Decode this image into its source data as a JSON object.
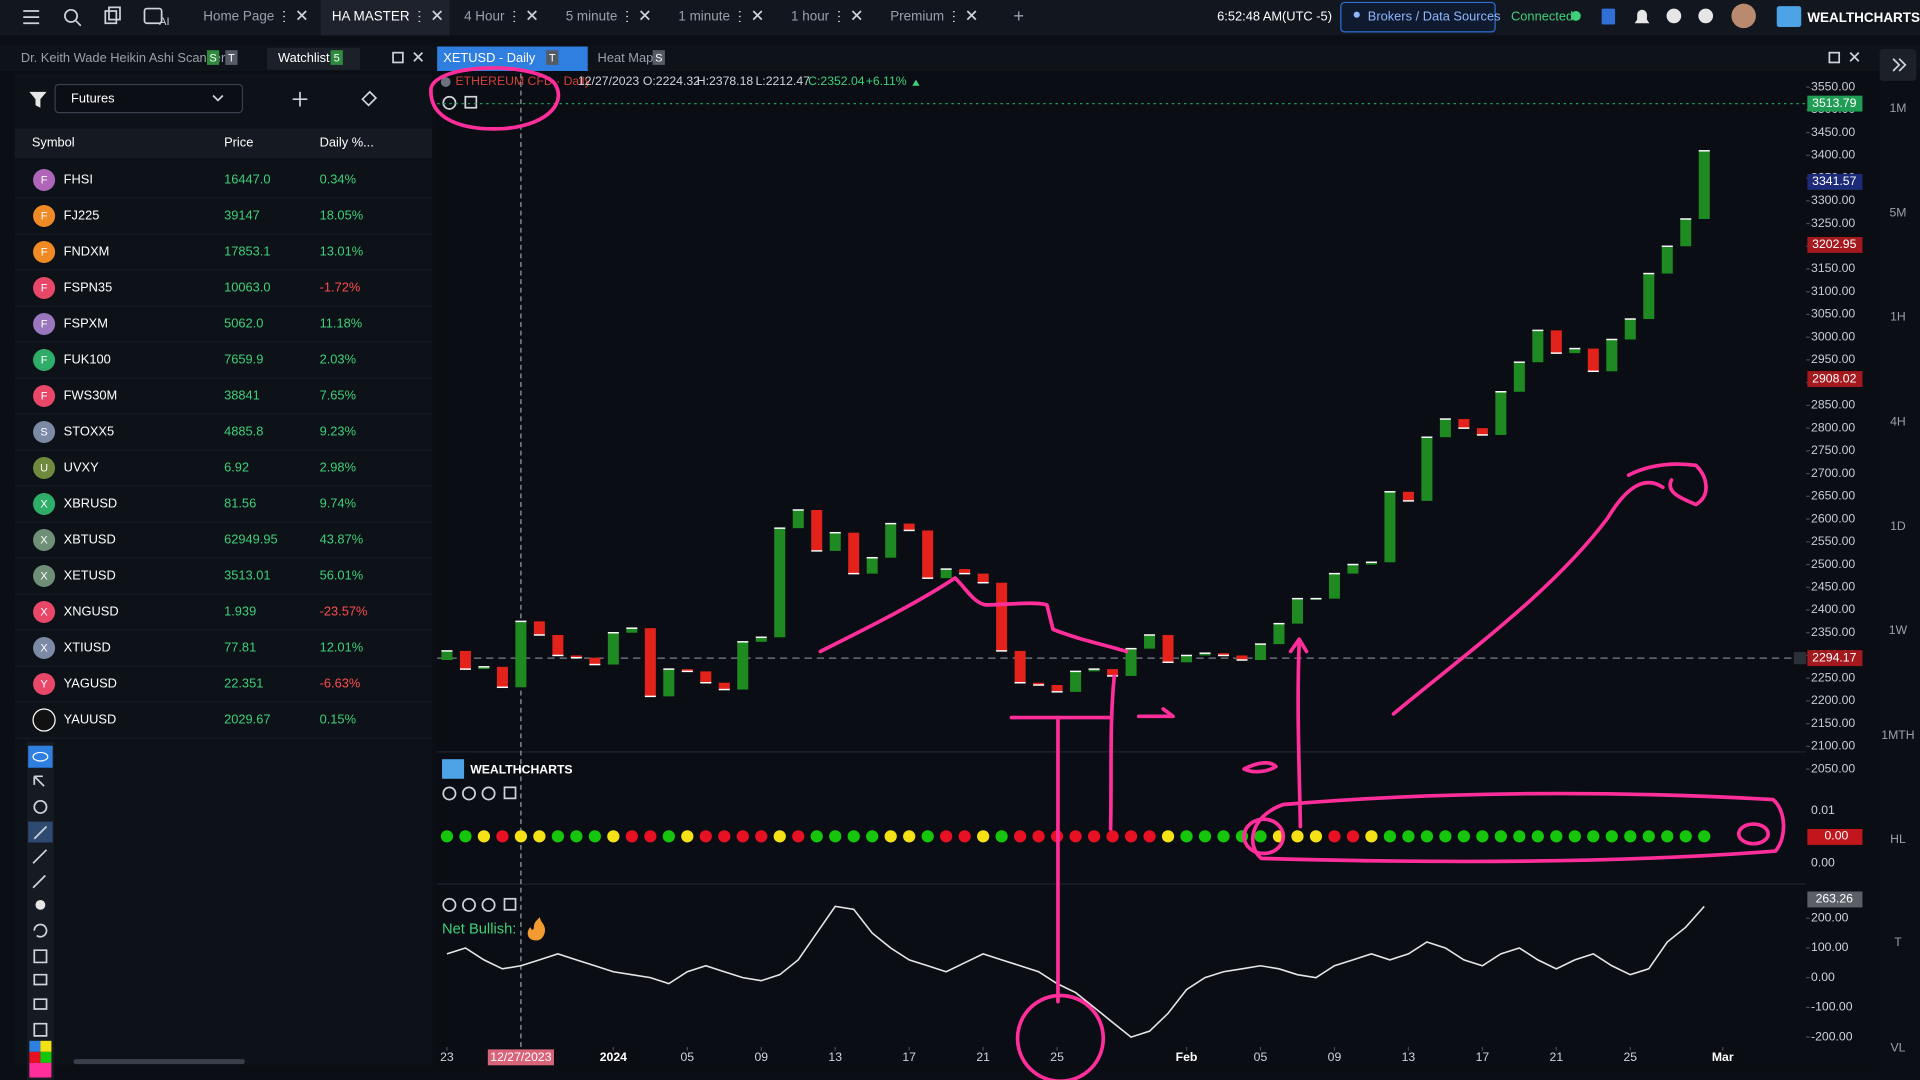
{
  "topbar": {
    "tabs": [
      "Home Page",
      "HA MASTER",
      "4 Hour",
      "5 minute",
      "1 minute",
      "1 hour",
      "Premium"
    ],
    "clock": "6:52:48 AM",
    "timezone": "(UTC -5)",
    "brokers_button": "Brokers / Data Sources",
    "status": "Connected",
    "brand": "WEALTHCHARTS"
  },
  "panels": {
    "scanner_tab": "Dr. Keith Wade Heikin Ashi Scanner",
    "scanner_badges": [
      "S",
      "T"
    ],
    "watchlist_tab": "Watchlist",
    "watchlist_badge": "5",
    "chart_tab": "XETUSD - Daily",
    "chart_badge": "T",
    "heatmap_tab": "Heat Map",
    "heatmap_badge": "S"
  },
  "watchlist": {
    "filter": "Futures",
    "columns": [
      "Symbol",
      "Price",
      "Daily %..."
    ],
    "rows": [
      {
        "icon": "F",
        "color": "#b066b8",
        "symbol": "FHSI",
        "price": "16447.0",
        "change": "0.34%"
      },
      {
        "icon": "F",
        "color": "#f08a24",
        "symbol": "FJ225",
        "price": "39147",
        "change": "18.05%"
      },
      {
        "icon": "F",
        "color": "#f08a24",
        "symbol": "FNDXM",
        "price": "17853.1",
        "change": "13.01%"
      },
      {
        "icon": "F",
        "color": "#e8476a",
        "symbol": "FSPN35",
        "price": "10063.0",
        "change": "-1.72%"
      },
      {
        "icon": "F",
        "color": "#9a78c0",
        "symbol": "FSPXM",
        "price": "5062.0",
        "change": "11.18%"
      },
      {
        "icon": "F",
        "color": "#2fae6a",
        "symbol": "FUK100",
        "price": "7659.9",
        "change": "2.03%"
      },
      {
        "icon": "F",
        "color": "#e8476a",
        "symbol": "FWS30M",
        "price": "38841",
        "change": "7.65%"
      },
      {
        "icon": "S",
        "color": "#7d8aa6",
        "symbol": "STOXX5",
        "price": "4885.8",
        "change": "9.23%"
      },
      {
        "icon": "U",
        "color": "#6f8a3c",
        "symbol": "UVXY",
        "price": "6.92",
        "change": "2.98%"
      },
      {
        "icon": "X",
        "color": "#2fae6a",
        "symbol": "XBRUSD",
        "price": "81.56",
        "change": "9.74%"
      },
      {
        "icon": "X",
        "color": "#6f8f76",
        "symbol": "XBTUSD",
        "price": "62949.95",
        "change": "43.87%"
      },
      {
        "icon": "X",
        "color": "#6f8f76",
        "symbol": "XETUSD",
        "price": "3513.01",
        "change": "56.01%"
      },
      {
        "icon": "X",
        "color": "#e8476a",
        "symbol": "XNGUSD",
        "price": "1.939",
        "change": "-23.57%"
      },
      {
        "icon": "X",
        "color": "#7d8aa6",
        "symbol": "XTIUSD",
        "price": "77.81",
        "change": "12.01%"
      },
      {
        "icon": "Y",
        "color": "#e8476a",
        "symbol": "YAGUSD",
        "price": "22.351",
        "change": "-6.63%"
      },
      {
        "icon": "",
        "color": "#111111",
        "symbol": "YAUUSD",
        "price": "2029.67",
        "change": "0.15%"
      }
    ]
  },
  "chart": {
    "legend": {
      "symbol": "ETHEREUM CFD · Daily",
      "date": "12/27/2023",
      "open": "O:2224.32",
      "high": "H:2378.18",
      "low": "L:2212.47",
      "close": "C:2352.04",
      "change": "+6.11%"
    },
    "crosshair_date": "12/27/2023",
    "dates": [
      "2023-12-23",
      "2023-12-24",
      "2023-12-25",
      "2023-12-26",
      "2023-12-27",
      "2023-12-28",
      "2023-12-29",
      "2023-12-30",
      "2023-12-31",
      "2024-01-01",
      "2024-01-02",
      "2024-01-03",
      "2024-01-04",
      "2024-01-05",
      "2024-01-06",
      "2024-01-07",
      "2024-01-08",
      "2024-01-09",
      "2024-01-10",
      "2024-01-11",
      "2024-01-12",
      "2024-01-13",
      "2024-01-14",
      "2024-01-15",
      "2024-01-16",
      "2024-01-17",
      "2024-01-18",
      "2024-01-19",
      "2024-01-20",
      "2024-01-21",
      "2024-01-22",
      "2024-01-23",
      "2024-01-24",
      "2024-01-25",
      "2024-01-26",
      "2024-01-27",
      "2024-01-28",
      "2024-01-29",
      "2024-01-30",
      "2024-01-31",
      "2024-02-01",
      "2024-02-02",
      "2024-02-03",
      "2024-02-04",
      "2024-02-05",
      "2024-02-06",
      "2024-02-07",
      "2024-02-08",
      "2024-02-09",
      "2024-02-10",
      "2024-02-11",
      "2024-02-12",
      "2024-02-13",
      "2024-02-14",
      "2024-02-15",
      "2024-02-16",
      "2024-02-17",
      "2024-02-18",
      "2024-02-19",
      "2024-02-20",
      "2024-02-21",
      "2024-02-22",
      "2024-02-23",
      "2024-02-24",
      "2024-02-25",
      "2024-02-26",
      "2024-02-27",
      "2024-02-28",
      "2024-02-29"
    ],
    "candles": {
      "up_color": "#1f8a22",
      "down_color": "#e3231b",
      "open": [
        2290,
        2310,
        2270,
        2275,
        2230,
        2375,
        2345,
        2300,
        2295,
        2280,
        2350,
        2360,
        2210,
        2270,
        2265,
        2240,
        2225,
        2330,
        2340,
        2580,
        2620,
        2530,
        2570,
        2480,
        2515,
        2590,
        2575,
        2470,
        2490,
        2480,
        2460,
        2310,
        2240,
        2235,
        2220,
        2265,
        2270,
        2255,
        2315,
        2345,
        2285,
        2300,
        2305,
        2300,
        2290,
        2325,
        2370,
        2425,
        2425,
        2480,
        2500,
        2505,
        2660,
        2640,
        2780,
        2820,
        2800,
        2785,
        2880,
        2945,
        3015,
        2965,
        2975,
        2925,
        2995,
        3040,
        3140,
        3200,
        3260
      ],
      "close": [
        2310,
        2270,
        2275,
        2230,
        2375,
        2345,
        2300,
        2295,
        2280,
        2350,
        2360,
        2210,
        2270,
        2265,
        2240,
        2225,
        2330,
        2340,
        2580,
        2620,
        2530,
        2570,
        2480,
        2515,
        2590,
        2575,
        2470,
        2490,
        2480,
        2460,
        2310,
        2240,
        2235,
        2220,
        2265,
        2270,
        2255,
        2315,
        2345,
        2285,
        2300,
        2305,
        2300,
        2290,
        2325,
        2370,
        2425,
        2425,
        2480,
        2500,
        2505,
        2660,
        2640,
        2780,
        2820,
        2800,
        2785,
        2880,
        2945,
        3015,
        2965,
        2975,
        2925,
        2995,
        3040,
        3140,
        3200,
        3260,
        3410
      ]
    },
    "ylim": [
      2018,
      3572
    ],
    "yticks": [
      {
        "value": 2050,
        "label": "2050.00"
      },
      {
        "value": 2100,
        "label": "2100.00"
      },
      {
        "value": 2150,
        "label": "2150.00"
      },
      {
        "value": 2200,
        "label": "2200.00"
      },
      {
        "value": 2250,
        "label": "2250.00"
      },
      {
        "value": 2300,
        "label": "2300.00"
      },
      {
        "value": 2350,
        "label": "2350.00"
      },
      {
        "value": 2400,
        "label": "2400.00"
      },
      {
        "value": 2450,
        "label": "2450.00"
      },
      {
        "value": 2500,
        "label": "2500.00"
      },
      {
        "value": 2550,
        "label": "2550.00"
      },
      {
        "value": 2600,
        "label": "2600.00"
      },
      {
        "value": 2650,
        "label": "2650.00"
      },
      {
        "value": 2700,
        "label": "2700.00"
      },
      {
        "value": 2750,
        "label": "2750.00"
      },
      {
        "value": 2800,
        "label": "2800.00"
      },
      {
        "value": 2850,
        "label": "2850.00"
      },
      {
        "value": 2900,
        "label": "2900.00"
      },
      {
        "value": 2950,
        "label": "2950.00"
      },
      {
        "value": 3000,
        "label": "3000.00"
      },
      {
        "value": 3050,
        "label": "3050.00"
      },
      {
        "value": 3100,
        "label": "3100.00"
      },
      {
        "value": 3150,
        "label": "3150.00"
      },
      {
        "value": 3200,
        "label": "3200.00"
      },
      {
        "value": 3250,
        "label": "3250.00"
      },
      {
        "value": 3300,
        "label": "3300.00"
      },
      {
        "value": 3350,
        "label": "3350.00"
      },
      {
        "value": 3400,
        "label": "3400.00"
      },
      {
        "value": 3450,
        "label": "3450.00"
      },
      {
        "value": 3500,
        "label": "3500.00"
      },
      {
        "value": 3550,
        "label": "3550.00"
      }
    ],
    "price_markers": [
      {
        "value": 3513.79,
        "color": "#1f9d55"
      },
      {
        "value": 3341.57,
        "color": "#1c2a78"
      },
      {
        "value": 3202.95,
        "color": "#a3191d"
      },
      {
        "value": 2908.02,
        "color": "#a3191d"
      },
      {
        "value": 2294.17,
        "color": "#a3191d"
      }
    ],
    "xticks": [
      {
        "value": "2023-12-23",
        "label": "23"
      },
      {
        "value": "2024-01-01",
        "label": "2024"
      },
      {
        "value": "2024-01-05",
        "label": "05"
      },
      {
        "value": "2024-01-09",
        "label": "09"
      },
      {
        "value": "2024-01-13",
        "label": "13"
      },
      {
        "value": "2024-01-17",
        "label": "17"
      },
      {
        "value": "2024-01-21",
        "label": "21"
      },
      {
        "value": "2024-01-25",
        "label": "25"
      },
      {
        "value": "2024-02-01",
        "label": "Feb"
      },
      {
        "value": "2024-02-05",
        "label": "05"
      },
      {
        "value": "2024-02-09",
        "label": "09"
      },
      {
        "value": "2024-02-13",
        "label": "13"
      },
      {
        "value": "2024-02-17",
        "label": "17"
      },
      {
        "value": "2024-02-21",
        "label": "21"
      },
      {
        "value": "2024-02-25",
        "label": "25"
      },
      {
        "value": "2024-03-01",
        "label": "Mar"
      }
    ],
    "timeframes": [
      "1M",
      "5M",
      "1H",
      "4H",
      "1D",
      "1W",
      "1MTH",
      "HL",
      "T",
      "VL"
    ],
    "indicator_logo": "WEALTHCHARTS",
    "signal": {
      "states": "GGYRYYGGGYRRGYRRRRYRGGGGYYGRRYGRRRRRRRRYGGGGGYYYRRYGGGGGGGGGGGGGGGGGG",
      "colors": {
        "G": "#16c60c",
        "Y": "#f5e216",
        "R": "#e81123"
      },
      "axis_labels": [
        "0.01",
        "0.00",
        "0.00"
      ]
    },
    "oscillator": {
      "label": "Net Bullish:",
      "color": "#e6e6e6",
      "values": [
        80,
        100,
        60,
        30,
        40,
        60,
        80,
        60,
        40,
        20,
        10,
        0,
        -20,
        20,
        40,
        20,
        0,
        -10,
        10,
        60,
        150,
        240,
        230,
        150,
        100,
        60,
        40,
        20,
        50,
        80,
        60,
        40,
        20,
        -20,
        -50,
        -100,
        -150,
        -200,
        -180,
        -120,
        -40,
        0,
        20,
        30,
        40,
        30,
        10,
        0,
        40,
        60,
        80,
        60,
        80,
        120,
        100,
        60,
        40,
        80,
        100,
        60,
        30,
        60,
        80,
        40,
        10,
        30,
        120,
        170,
        240
      ],
      "ylim": [
        -233,
        282
      ],
      "yticks": [
        {
          "value": 200,
          "label": "200.00"
        },
        {
          "value": 100,
          "label": "100.00"
        },
        {
          "value": 0,
          "label": "0.00"
        },
        {
          "value": -100,
          "label": "-100.00"
        },
        {
          "value": -200,
          "label": "-200.00"
        }
      ],
      "marker": {
        "value": 263.26,
        "color": "#5a5f68"
      }
    }
  }
}
